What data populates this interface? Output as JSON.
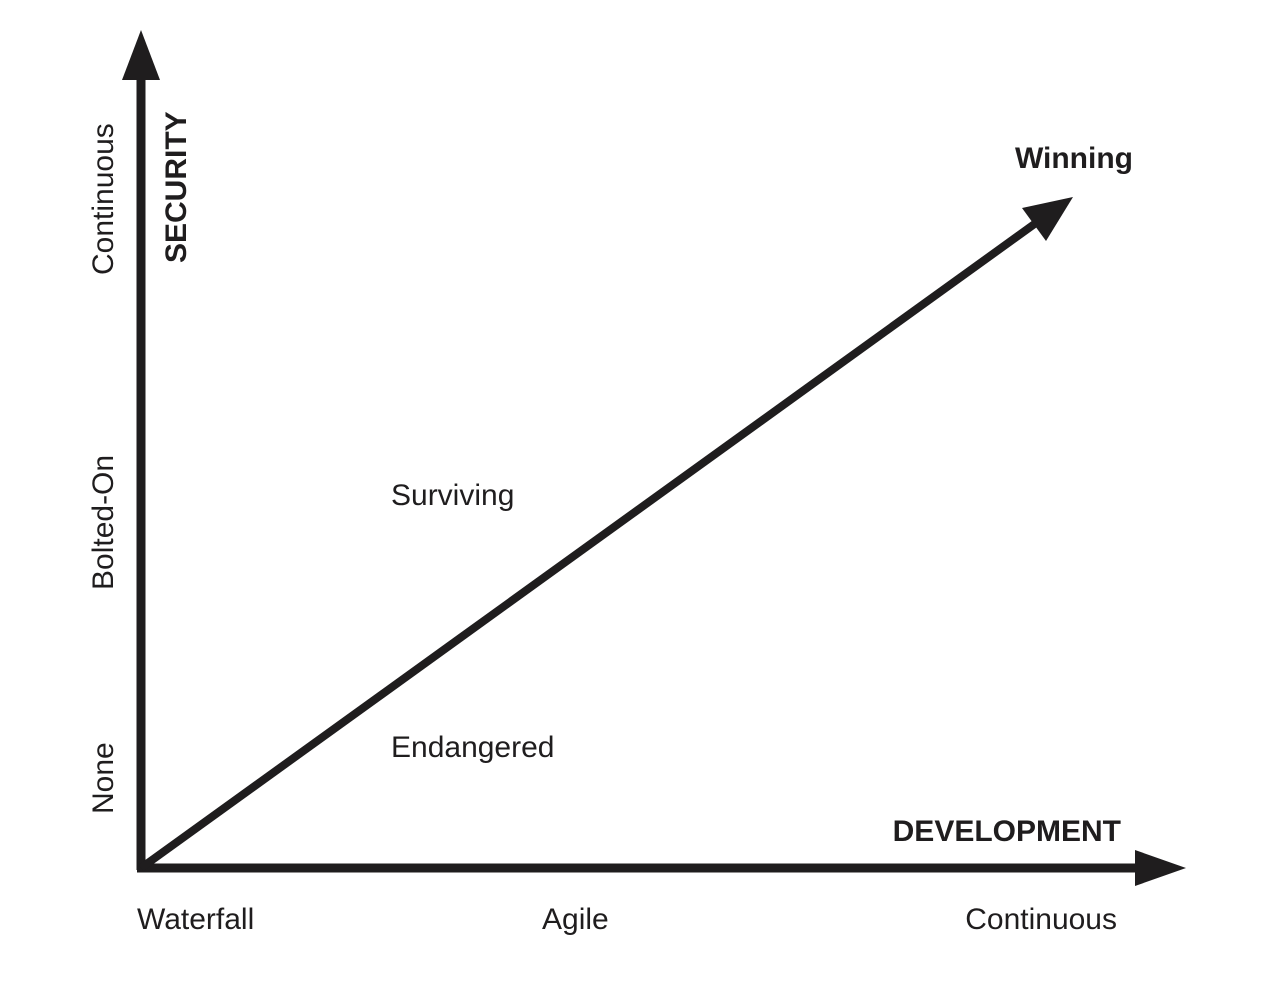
{
  "axes": {
    "x": {
      "title": "DEVELOPMENT",
      "ticks": [
        "Waterfall",
        "Agile",
        "Continuous"
      ]
    },
    "y": {
      "title": "SECURITY",
      "ticks": [
        "None",
        "Bolted-On",
        "Continuous"
      ]
    }
  },
  "trend": {
    "label": "Winning"
  },
  "zones": {
    "above": "Surviving",
    "below": "Endangered"
  },
  "colors": {
    "ink": "#1f1d1e",
    "background": "#ffffff"
  }
}
